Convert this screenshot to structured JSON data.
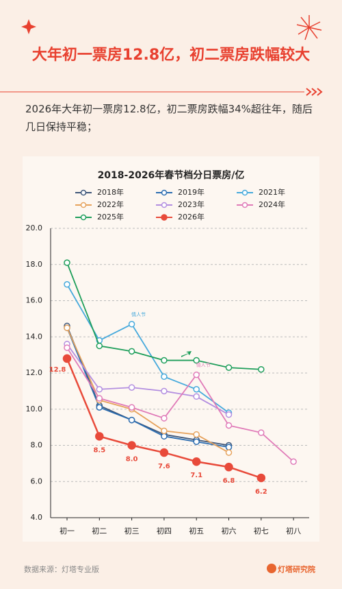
{
  "header": {
    "title": "大年初一票房12.8亿，初二票房跌幅较大",
    "subtitle": "2026年大年初一票房12.8亿，初二票房跌幅34%超往年，随后几日保持平稳；"
  },
  "chart_data": {
    "type": "line",
    "title": "2018-2026年春节档分日票房/亿",
    "categories": [
      "初一",
      "初二",
      "初三",
      "初四",
      "初五",
      "初六",
      "初七",
      "初八"
    ],
    "ylim": [
      4,
      20
    ],
    "yticks": [
      {
        "value": 4,
        "label": "4.0"
      },
      {
        "value": 6,
        "label": "6.0"
      },
      {
        "value": 8,
        "label": "8.0"
      },
      {
        "value": 10,
        "label": "10.0"
      },
      {
        "value": 12,
        "label": "12.0"
      },
      {
        "value": 14,
        "label": "14.0"
      },
      {
        "value": 16,
        "label": "16.0"
      },
      {
        "value": 18,
        "label": "18.0"
      },
      {
        "value": 20,
        "label": "20.0"
      }
    ],
    "grid": true,
    "series": [
      {
        "name": "2018年",
        "color": "#3c5578",
        "values": [
          14.6,
          10.2,
          9.4,
          8.6,
          8.3,
          8.0,
          null,
          null
        ]
      },
      {
        "name": "2019年",
        "color": "#2a6cb0",
        "values": [
          14.5,
          10.1,
          9.4,
          8.5,
          8.2,
          7.9,
          null,
          null
        ]
      },
      {
        "name": "2021年",
        "color": "#45a9dc",
        "values": [
          16.9,
          13.8,
          14.7,
          11.8,
          11.1,
          9.8,
          null,
          null
        ]
      },
      {
        "name": "2022年",
        "color": "#e6a25c",
        "values": [
          14.5,
          10.5,
          10.0,
          8.8,
          8.6,
          7.6,
          null,
          null
        ]
      },
      {
        "name": "2023年",
        "color": "#b38ee0",
        "values": [
          13.6,
          11.1,
          11.2,
          11.0,
          10.7,
          9.7,
          null,
          null
        ]
      },
      {
        "name": "2024年",
        "color": "#e07bb8",
        "values": [
          13.4,
          10.6,
          10.1,
          9.5,
          11.9,
          9.1,
          8.7,
          7.1
        ]
      },
      {
        "name": "2025年",
        "color": "#1e9e5a",
        "values": [
          18.1,
          13.5,
          13.2,
          12.7,
          12.7,
          12.3,
          12.2,
          null
        ]
      },
      {
        "name": "2026年",
        "color": "#e84a3a",
        "values": [
          12.8,
          8.5,
          8.0,
          7.6,
          7.1,
          6.8,
          6.2,
          null
        ],
        "value_labels": [
          "12.8",
          "8.5",
          "8.0",
          "7.6",
          "7.1",
          "6.8",
          "6.2",
          null
        ]
      }
    ],
    "annotations": [
      {
        "text": "情人节",
        "series": "2021年",
        "category": "初三"
      },
      {
        "text": "情人节",
        "series": "2024年",
        "category": "初五"
      }
    ]
  },
  "footer": {
    "source": "数据来源：灯塔专业版",
    "brand": "灯塔研究院"
  }
}
